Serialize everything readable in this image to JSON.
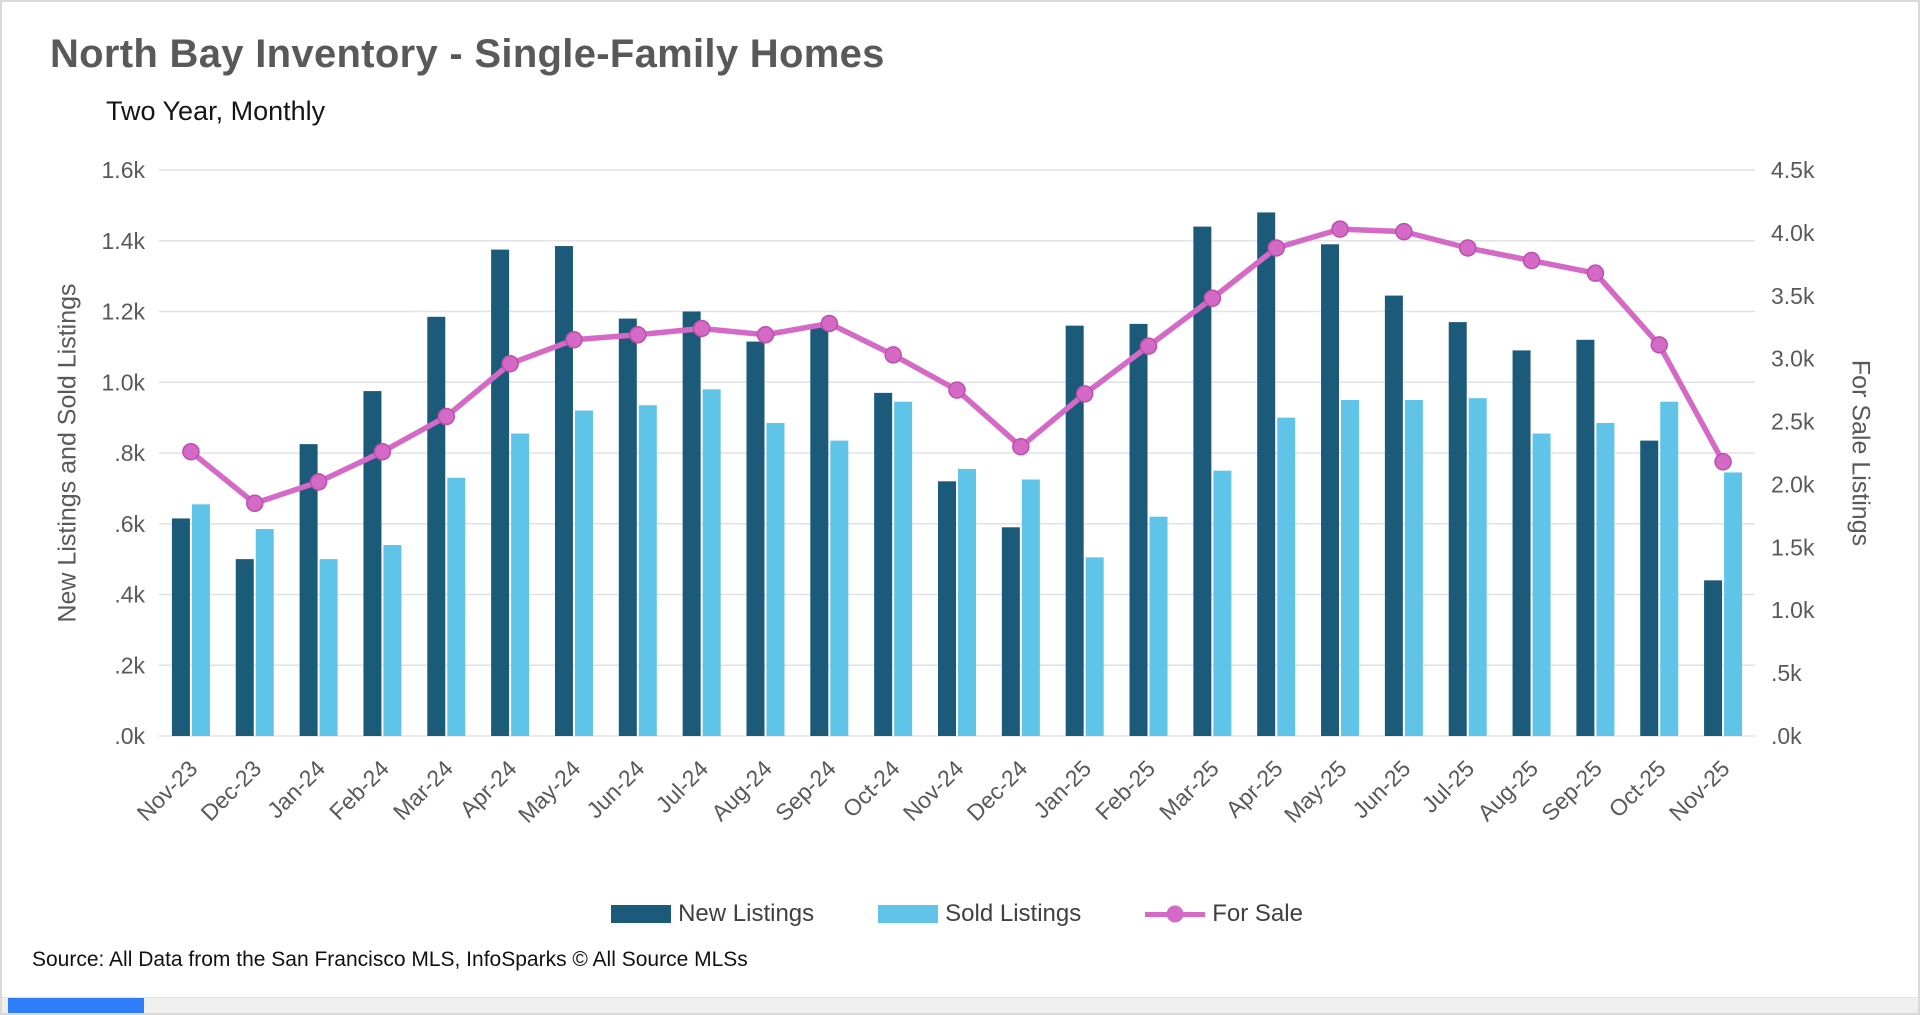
{
  "header": {
    "title": "North Bay Inventory - Single-Family Homes",
    "subtitle": "Two Year, Monthly"
  },
  "footer": {
    "source": "Source: All Data from the San Francisco MLS, InfoSparks © All Source MLSs"
  },
  "colors": {
    "new_listings": "#1b5a78",
    "sold_listings": "#5fc4e8",
    "for_sale": "#d569c6",
    "for_sale_marker_stroke": "#bb4fae",
    "grid": "#e2e2e2",
    "axis_text": "#595959",
    "title_text": "#595959",
    "bottom_strip_blue": "#2e7cf6"
  },
  "chart_data": {
    "type": "combo",
    "title": "North Bay Inventory - Single-Family Homes",
    "subtitle": "Two Year, Monthly",
    "grid": "horizontal",
    "legend_position": "bottom",
    "categories": [
      "Nov-23",
      "Dec-23",
      "Jan-24",
      "Feb-24",
      "Mar-24",
      "Apr-24",
      "May-24",
      "Jun-24",
      "Jul-24",
      "Aug-24",
      "Sep-24",
      "Oct-24",
      "Nov-24",
      "Dec-24",
      "Jan-25",
      "Feb-25",
      "Mar-25",
      "Apr-25",
      "May-25",
      "Jun-25",
      "Jul-25",
      "Aug-25",
      "Sep-25",
      "Oct-25",
      "Nov-25"
    ],
    "series": [
      {
        "name": "New Listings",
        "type": "bar",
        "axis": "left",
        "color": "#1b5a78",
        "values": [
          615,
          500,
          825,
          975,
          1185,
          1375,
          1385,
          1180,
          1200,
          1115,
          1155,
          970,
          720,
          590,
          1160,
          1165,
          1440,
          1480,
          1390,
          1245,
          1170,
          1090,
          1120,
          835,
          440
        ]
      },
      {
        "name": "Sold Listings",
        "type": "bar",
        "axis": "left",
        "color": "#5fc4e8",
        "values": [
          655,
          585,
          500,
          540,
          730,
          855,
          920,
          935,
          980,
          885,
          835,
          945,
          755,
          725,
          505,
          620,
          750,
          900,
          950,
          950,
          955,
          855,
          885,
          945,
          745
        ]
      },
      {
        "name": "For Sale",
        "type": "line",
        "axis": "right",
        "color": "#d569c6",
        "marker_stroke": "#bb4fae",
        "values": [
          2260,
          1850,
          2020,
          2260,
          2540,
          2960,
          3150,
          3190,
          3240,
          3190,
          3280,
          3030,
          2750,
          2300,
          2720,
          3100,
          3480,
          3880,
          4030,
          4010,
          3880,
          3780,
          3680,
          3110,
          2180
        ]
      }
    ],
    "left_axis": {
      "title": "New Listings and Sold Listings",
      "min": 0,
      "max": 1600,
      "step": 200,
      "ticks": [
        "1.6k",
        "1.4k",
        "1.2k",
        "1.0k",
        ".8k",
        ".6k",
        ".4k",
        ".2k",
        ".0k"
      ]
    },
    "right_axis": {
      "title": "For Sale Listings",
      "min": 0,
      "max": 4500,
      "step": 500,
      "ticks": [
        "4.5k",
        "4.0k",
        "3.5k",
        "3.0k",
        "2.5k",
        "2.0k",
        "1.5k",
        "1.0k",
        ".5k",
        ".0k"
      ]
    }
  }
}
